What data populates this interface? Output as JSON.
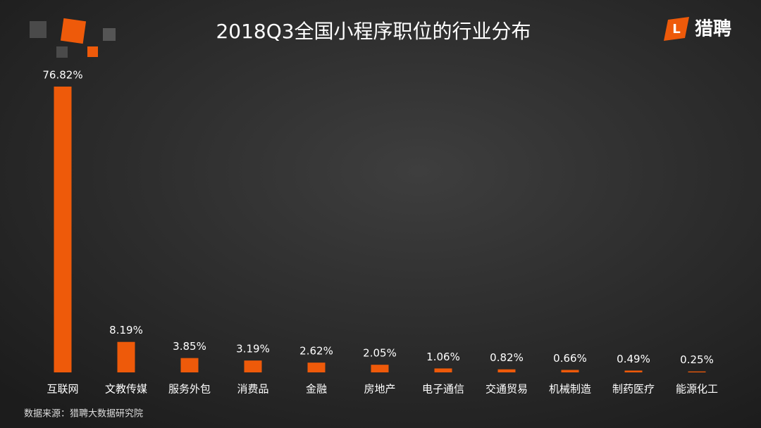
{
  "chart_data": {
    "type": "bar",
    "title": "2018Q3全国小程序职位的行业分布",
    "brand": "猎聘",
    "source": "数据来源：猎聘大数据研究院",
    "categories": [
      "互联网",
      "文教传媒",
      "服务外包",
      "消费品",
      "金融",
      "房地产",
      "电子通信",
      "交通贸易",
      "机械制造",
      "制药医疗",
      "能源化工"
    ],
    "values": [
      76.82,
      8.19,
      3.85,
      3.19,
      2.62,
      2.05,
      1.06,
      0.82,
      0.66,
      0.49,
      0.25
    ],
    "value_labels": [
      "76.82%",
      "8.19%",
      "3.85%",
      "3.19%",
      "2.62%",
      "2.05%",
      "1.06%",
      "0.82%",
      "0.66%",
      "0.49%",
      "0.25%"
    ],
    "color": "#ee5a0a"
  }
}
